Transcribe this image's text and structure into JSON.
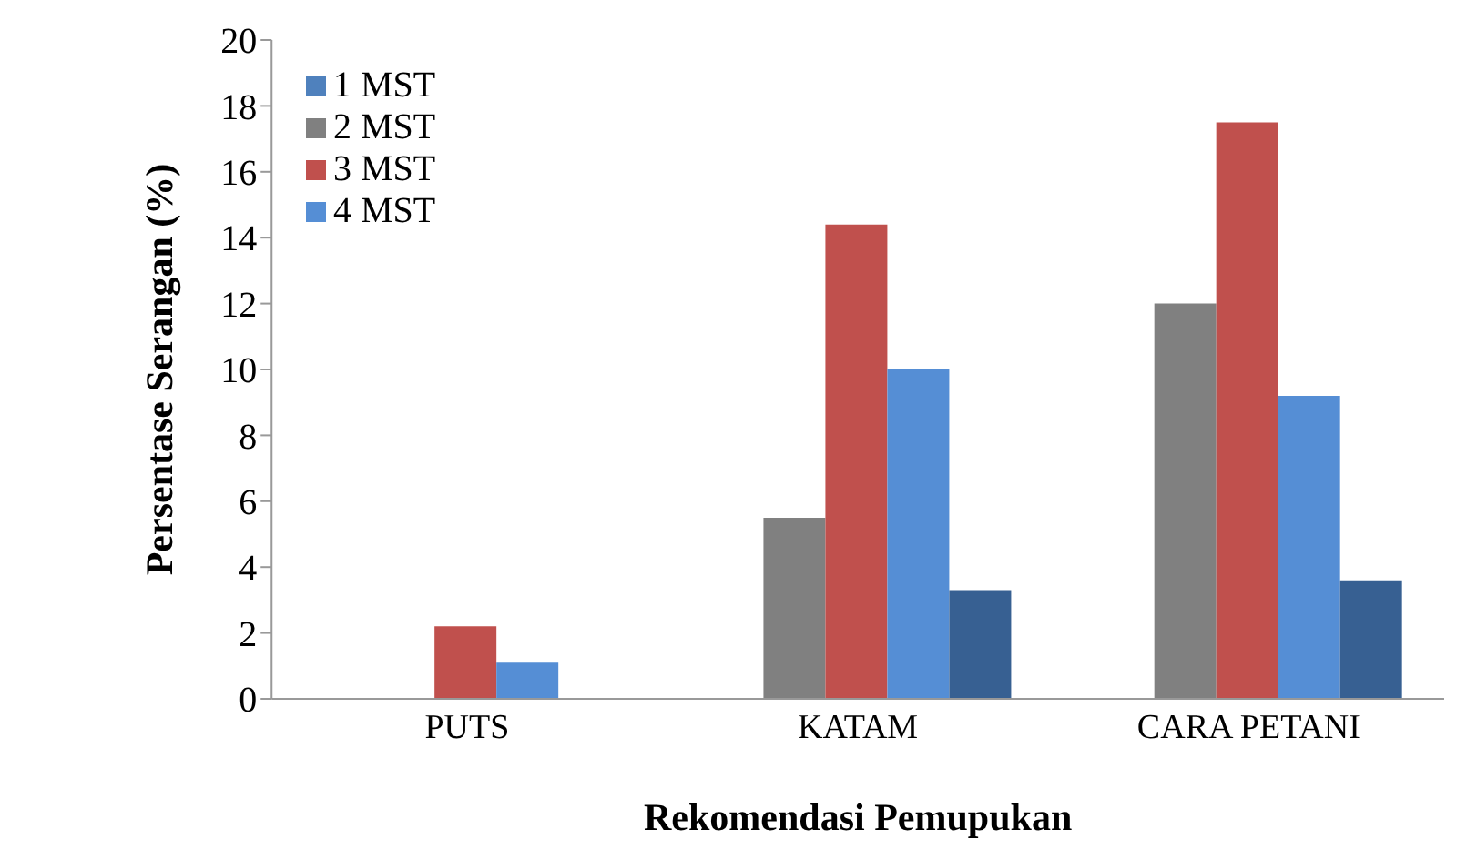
{
  "chart_data": {
    "type": "bar",
    "xlabel": "Rekomendasi Pemupukan",
    "ylabel": "Persentase Serangan (%)",
    "categories": [
      "PUTS",
      "KATAM",
      "CARA PETANI"
    ],
    "series": [
      {
        "name": "1 MST",
        "color": "#4f81bd",
        "values": [
          0,
          0,
          0
        ]
      },
      {
        "name": "2 MST",
        "color": "#808080",
        "values": [
          0,
          5.5,
          12.0
        ]
      },
      {
        "name": "3 MST",
        "color": "#c0504d",
        "values": [
          2.2,
          14.4,
          17.5
        ]
      },
      {
        "name": "4 MST",
        "color": "#558ed5",
        "values": [
          1.1,
          10.0,
          9.2
        ]
      },
      {
        "color": "#376092",
        "values": [
          0,
          3.3,
          3.6
        ]
      }
    ],
    "ylim": [
      0,
      20
    ],
    "yticks": [
      0,
      2,
      4,
      6,
      8,
      10,
      12,
      14,
      16,
      18,
      20
    ],
    "grid": false,
    "legend": "top left"
  }
}
